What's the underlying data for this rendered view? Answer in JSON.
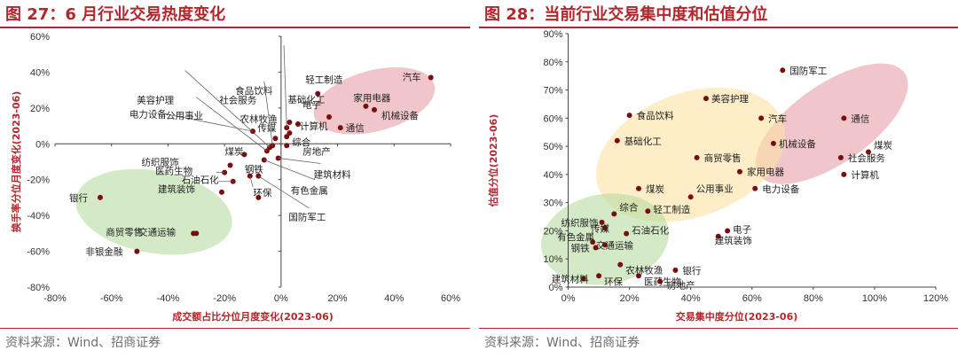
{
  "source": "资料来源：Wind、招商证券",
  "theme": {
    "title_color": "#b3262c",
    "point_color": "#7a0e0e",
    "red_zone": "#e8a0a6",
    "green_zone": "#b7dca0",
    "yellow_zone": "#fbe3a3"
  },
  "chart_data": [
    {
      "type": "scatter",
      "title": "图 27：6 月行业交易热度变化",
      "xlabel": "成交额占比分位月度变化(2023-06)",
      "ylabel": "换手率分位月度变化(2023-06)",
      "xlim": [
        -0.8,
        0.6
      ],
      "ylim": [
        -0.8,
        0.6
      ],
      "xticks": [
        -0.8,
        -0.6,
        -0.4,
        -0.2,
        0,
        0.2,
        0.4,
        0.6
      ],
      "yticks": [
        -0.8,
        -0.6,
        -0.4,
        -0.2,
        0,
        0.2,
        0.4,
        0.6
      ],
      "xtick_labels": [
        "-80%",
        "-60%",
        "-40%",
        "-20%",
        "0%",
        "20%",
        "40%",
        "60%"
      ],
      "ytick_labels": [
        "-80%",
        "-60%",
        "-40%",
        "-20%",
        "0%",
        "20%",
        "40%",
        "60%"
      ],
      "grid": false,
      "zones": [
        "red",
        "green"
      ],
      "points": [
        {
          "name": "汽车",
          "x": 0.53,
          "y": 0.37
        },
        {
          "name": "家用电器",
          "x": 0.3,
          "y": 0.21
        },
        {
          "name": "机械设备",
          "x": 0.33,
          "y": 0.19
        },
        {
          "name": "电子",
          "x": 0.17,
          "y": 0.15
        },
        {
          "name": "通信",
          "x": 0.21,
          "y": 0.09
        },
        {
          "name": "轻工制造",
          "x": 0.13,
          "y": 0.28
        },
        {
          "name": "计算机",
          "x": 0.06,
          "y": 0.11
        },
        {
          "name": "基础化工",
          "x": 0.03,
          "y": 0.12
        },
        {
          "name": "食品饮料",
          "x": 0.02,
          "y": 0.09
        },
        {
          "name": "传媒",
          "x": 0.03,
          "y": 0.06
        },
        {
          "name": "综合",
          "x": 0.02,
          "y": 0.04
        },
        {
          "name": "房地产",
          "x": 0.02,
          "y": -0.01
        },
        {
          "name": "农林牧渔",
          "x": -0.02,
          "y": 0.03
        },
        {
          "name": "社会服务",
          "x": -0.03,
          "y": -0.01
        },
        {
          "name": "美容护理",
          "x": -0.04,
          "y": -0.02
        },
        {
          "name": "电力设备",
          "x": -0.05,
          "y": -0.04
        },
        {
          "name": "建筑材料",
          "x": -0.01,
          "y": -0.08
        },
        {
          "name": "有色金属",
          "x": -0.06,
          "y": -0.09
        },
        {
          "name": "公用事业",
          "x": -0.1,
          "y": 0.07
        },
        {
          "name": "国防军工",
          "x": -0.08,
          "y": -0.18
        },
        {
          "name": "钢铁",
          "x": -0.11,
          "y": -0.18
        },
        {
          "name": "煤炭",
          "x": -0.13,
          "y": -0.06
        },
        {
          "name": "纺织服饰",
          "x": -0.18,
          "y": -0.12
        },
        {
          "name": "医药生物",
          "x": -0.2,
          "y": -0.16
        },
        {
          "name": "环保",
          "x": -0.08,
          "y": -0.3
        },
        {
          "name": "石油石化",
          "x": -0.17,
          "y": -0.21
        },
        {
          "name": "建筑装饰",
          "x": -0.21,
          "y": -0.27
        },
        {
          "name": "商贸零售",
          "x": -0.3,
          "y": -0.5
        },
        {
          "name": "交通运输",
          "x": -0.31,
          "y": -0.5
        },
        {
          "name": "银行",
          "x": -0.64,
          "y": -0.3
        },
        {
          "name": "非银金融",
          "x": -0.51,
          "y": -0.6
        }
      ]
    },
    {
      "type": "scatter",
      "title": "图 28：当前行业交易集中度和估值分位",
      "xlabel": "交易集中度分位(2023-06)",
      "ylabel": "估值分位(2023-06)",
      "xlim": [
        -0.1,
        1.2
      ],
      "ylim": [
        0,
        0.9
      ],
      "xticks": [
        0,
        0.2,
        0.4,
        0.6,
        0.8,
        1.0,
        1.2
      ],
      "yticks": [
        0,
        0.1,
        0.2,
        0.3,
        0.4,
        0.5,
        0.6,
        0.7,
        0.8,
        0.9
      ],
      "xtick_labels": [
        "0%",
        "20%",
        "40%",
        "60%",
        "80%",
        "100%",
        "120%"
      ],
      "ytick_labels": [
        "0%",
        "10%",
        "20%",
        "30%",
        "40%",
        "50%",
        "60%",
        "70%",
        "80%",
        "90%"
      ],
      "grid": false,
      "zones": [
        "red",
        "yellow",
        "green"
      ],
      "points": [
        {
          "name": "国防军工",
          "x": 0.7,
          "y": 0.77
        },
        {
          "name": "通信",
          "x": 0.9,
          "y": 0.6
        },
        {
          "name": "汽车",
          "x": 0.63,
          "y": 0.6
        },
        {
          "name": "机械设备",
          "x": 0.67,
          "y": 0.51
        },
        {
          "name": "煤炭",
          "x": 0.98,
          "y": 0.48
        },
        {
          "name": "社会服务",
          "x": 0.89,
          "y": 0.46
        },
        {
          "name": "计算机",
          "x": 0.9,
          "y": 0.4
        },
        {
          "name": "美容护理",
          "x": 0.45,
          "y": 0.67
        },
        {
          "name": "食品饮料",
          "x": 0.2,
          "y": 0.61
        },
        {
          "name": "基础化工",
          "x": 0.16,
          "y": 0.52
        },
        {
          "name": "商贸零售",
          "x": 0.42,
          "y": 0.46
        },
        {
          "name": "家用电器",
          "x": 0.56,
          "y": 0.41
        },
        {
          "name": "电力设备",
          "x": 0.61,
          "y": 0.35
        },
        {
          "name": "公用事业",
          "x": 0.4,
          "y": 0.32
        },
        {
          "name": "煤炭",
          "x": 0.23,
          "y": 0.35
        },
        {
          "name": "轻工制造",
          "x": 0.26,
          "y": 0.27
        },
        {
          "name": "电子",
          "x": 0.52,
          "y": 0.2
        },
        {
          "name": "建筑装饰",
          "x": 0.49,
          "y": 0.18
        },
        {
          "name": "综合",
          "x": 0.15,
          "y": 0.26
        },
        {
          "name": "纺织服饰",
          "x": 0.11,
          "y": 0.23
        },
        {
          "name": "传媒",
          "x": 0.12,
          "y": 0.21
        },
        {
          "name": "石油石化",
          "x": 0.19,
          "y": 0.19
        },
        {
          "name": "有色金属",
          "x": 0.08,
          "y": 0.16
        },
        {
          "name": "交通运输",
          "x": 0.12,
          "y": 0.15
        },
        {
          "name": "钢铁",
          "x": 0.09,
          "y": 0.14
        },
        {
          "name": "农林牧渔",
          "x": 0.17,
          "y": 0.08
        },
        {
          "name": "银行",
          "x": 0.35,
          "y": 0.06
        },
        {
          "name": "医药生物",
          "x": 0.23,
          "y": 0.04
        },
        {
          "name": "房地产",
          "x": 0.3,
          "y": 0.02
        },
        {
          "name": "环保",
          "x": 0.1,
          "y": 0.04
        },
        {
          "name": "建筑材料",
          "x": 0.05,
          "y": 0.03
        }
      ]
    }
  ]
}
